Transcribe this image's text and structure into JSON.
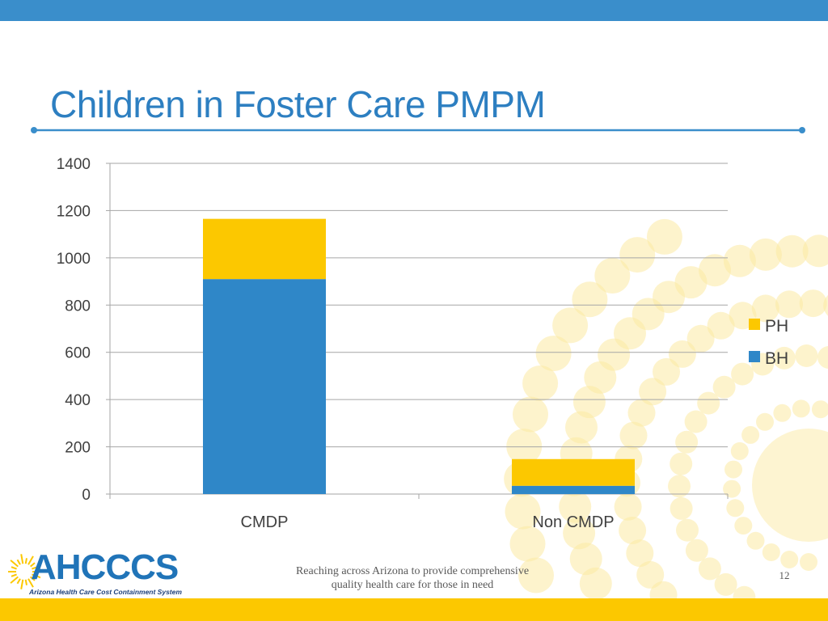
{
  "slide": {
    "title": "Children in Foster Care PMPM",
    "footer_line1": "Reaching across Arizona to provide comprehensive",
    "footer_line2": "quality health care for those in need",
    "page_number": "12"
  },
  "logo": {
    "name": "AHCCCS",
    "tagline": "Arizona Health Care Cost Containment System"
  },
  "colors": {
    "top_bar": "#3a8ecb",
    "title_text": "#2d7fc1",
    "rule": "#3a8ecb",
    "bh": "#2f87c8",
    "ph": "#fcc800",
    "bottom_bar": "#fcc800",
    "decor_dots": "#fbe9a3",
    "logo_blue": "#2074b8",
    "logo_navy": "#1c3f7a",
    "gridline": "#a6a6a6",
    "axis_text": "#404040"
  },
  "chart_data": {
    "type": "bar",
    "stacked": true,
    "categories": [
      "CMDP",
      "Non CMDP"
    ],
    "series": [
      {
        "name": "BH",
        "values": [
          910,
          35
        ]
      },
      {
        "name": "PH",
        "values": [
          255,
          113
        ]
      }
    ],
    "yticks": [
      0,
      200,
      400,
      600,
      800,
      1000,
      1200,
      1400
    ],
    "ylim": [
      0,
      1400
    ],
    "grid": true,
    "legend_position": "right",
    "legend_order": [
      "PH",
      "BH"
    ]
  }
}
